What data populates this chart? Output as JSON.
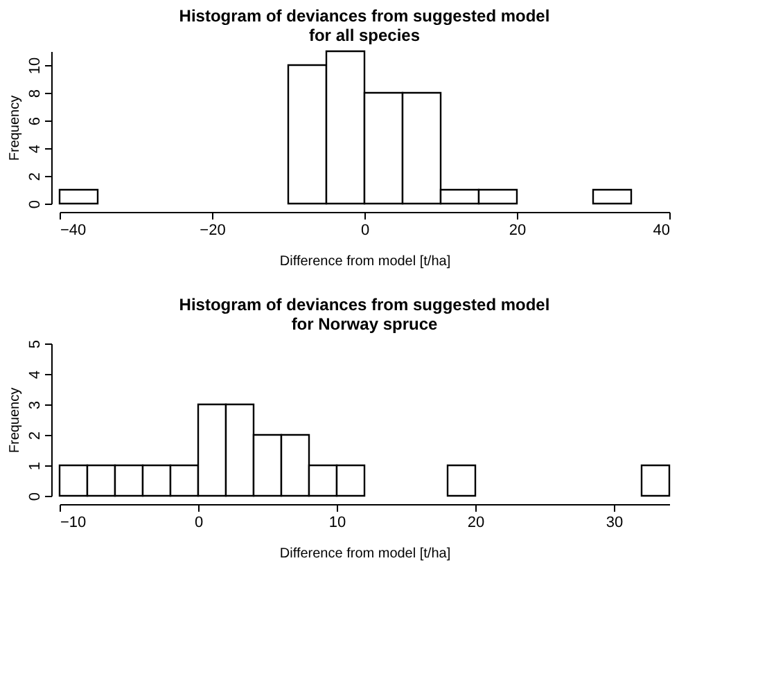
{
  "chart_data": [
    {
      "type": "histogram",
      "title": "Histogram of deviances from suggested model\nfor all species",
      "xlabel": "Difference from model [t/ha]",
      "ylabel": "Frequency",
      "bins": [
        -40,
        -35,
        -30,
        -25,
        -20,
        -15,
        -10,
        -5,
        0,
        5,
        10,
        15,
        20,
        25,
        30,
        35
      ],
      "values": [
        1,
        0,
        0,
        0,
        0,
        0,
        10,
        11,
        8,
        8,
        1,
        1,
        0,
        0,
        1
      ],
      "color": "#ffffff",
      "xlim": [
        -40,
        40
      ],
      "xticks": [
        -40,
        -20,
        0,
        20,
        40
      ],
      "ylim": [
        0,
        11
      ],
      "yticks": [
        0,
        2,
        4,
        6,
        8,
        10
      ],
      "grid": false
    },
    {
      "type": "histogram",
      "title": "Histogram of deviances from suggested model\nfor Norway spruce",
      "xlabel": "Difference from model [t/ha]",
      "ylabel": "Frequency",
      "bins": [
        -10,
        -8,
        -6,
        -4,
        -2,
        0,
        2,
        4,
        6,
        8,
        10,
        12,
        14,
        16,
        18,
        20,
        22,
        24,
        26,
        28,
        30,
        32,
        34
      ],
      "values": [
        1,
        1,
        1,
        1,
        1,
        3,
        3,
        2,
        2,
        1,
        1,
        0,
        0,
        0,
        1,
        0,
        0,
        0,
        0,
        0,
        0,
        1
      ],
      "color": "#ffffff",
      "xlim": [
        -10,
        34
      ],
      "xticks": [
        -10,
        0,
        10,
        20,
        30
      ],
      "ylim": [
        0,
        5
      ],
      "yticks": [
        0,
        1,
        2,
        3,
        4,
        5
      ],
      "grid": false
    }
  ]
}
